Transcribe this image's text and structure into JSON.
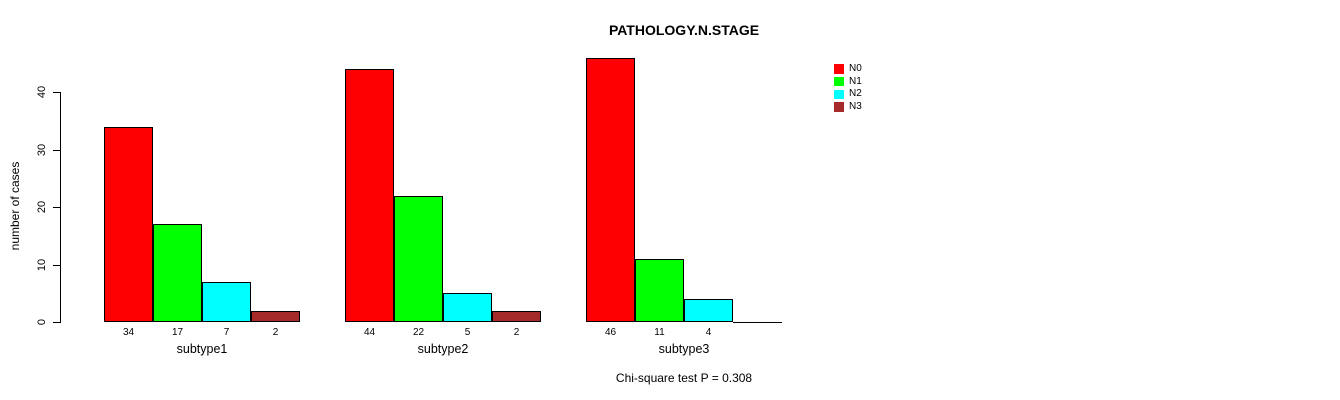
{
  "chart_data": {
    "type": "bar",
    "title": "PATHOLOGY.N.STAGE",
    "ylabel": "number of cases",
    "xlabel": "",
    "ylim": [
      0,
      40
    ],
    "yticks": [
      0,
      10,
      20,
      30,
      40
    ],
    "grid": false,
    "legend_position": "right-top",
    "legend_border": false,
    "bar_border_color": "#000000",
    "background_color": "#ffffff",
    "categories": [
      "subtype1",
      "subtype2",
      "subtype3"
    ],
    "series": [
      {
        "name": "N0",
        "color": "#ff0000",
        "values": [
          34,
          44,
          46
        ]
      },
      {
        "name": "N1",
        "color": "#00ff00",
        "values": [
          17,
          22,
          11
        ]
      },
      {
        "name": "N2",
        "color": "#00ffff",
        "values": [
          7,
          5,
          4
        ]
      },
      {
        "name": "N3",
        "color": "#a52a2a",
        "values": [
          2,
          2,
          0
        ]
      }
    ],
    "show_bar_value_labels": true,
    "zero_values_unlabeled": true,
    "annotation": "Chi-square test P = 0.308"
  }
}
